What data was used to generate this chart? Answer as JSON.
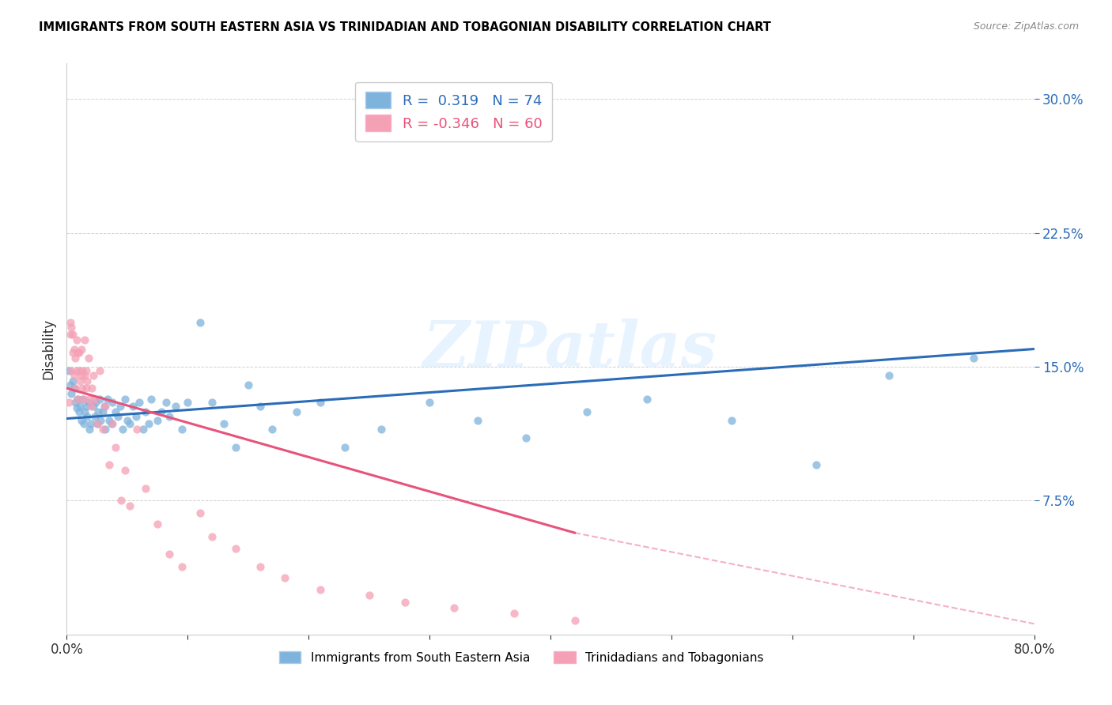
{
  "title": "IMMIGRANTS FROM SOUTH EASTERN ASIA VS TRINIDADIAN AND TOBAGONIAN DISABILITY CORRELATION CHART",
  "source": "Source: ZipAtlas.com",
  "ylabel": "Disability",
  "xlim": [
    0.0,
    0.8
  ],
  "ylim": [
    0.0,
    0.32
  ],
  "yticks": [
    0.075,
    0.15,
    0.225,
    0.3
  ],
  "ytick_labels": [
    "7.5%",
    "15.0%",
    "22.5%",
    "30.0%"
  ],
  "xticks": [
    0.0,
    0.1,
    0.2,
    0.3,
    0.4,
    0.5,
    0.6,
    0.7,
    0.8
  ],
  "xtick_labels": [
    "0.0%",
    "",
    "",
    "",
    "",
    "",
    "",
    "",
    "80.0%"
  ],
  "legend_label_blue": "Immigrants from South Eastern Asia",
  "legend_label_pink": "Trinidadians and Tobagonians",
  "R_blue": 0.319,
  "N_blue": 74,
  "R_pink": -0.346,
  "N_pink": 60,
  "blue_color": "#7EB3DC",
  "pink_color": "#F4A0B5",
  "blue_line_color": "#2B6CB8",
  "pink_line_color": "#E8537A",
  "watermark": "ZIPatlas",
  "blue_line_x0": 0.0,
  "blue_line_y0": 0.121,
  "blue_line_x1": 0.8,
  "blue_line_y1": 0.16,
  "pink_line_x0": 0.0,
  "pink_line_y0": 0.138,
  "pink_line_x1": 0.42,
  "pink_line_y1": 0.057,
  "pink_line_dash_x1": 0.8,
  "pink_line_dash_y1": 0.006,
  "blue_scatter_x": [
    0.002,
    0.003,
    0.004,
    0.005,
    0.006,
    0.007,
    0.008,
    0.009,
    0.01,
    0.011,
    0.012,
    0.013,
    0.014,
    0.015,
    0.016,
    0.017,
    0.018,
    0.019,
    0.02,
    0.022,
    0.023,
    0.024,
    0.025,
    0.026,
    0.027,
    0.028,
    0.03,
    0.031,
    0.032,
    0.034,
    0.035,
    0.037,
    0.038,
    0.04,
    0.042,
    0.044,
    0.046,
    0.048,
    0.05,
    0.052,
    0.055,
    0.057,
    0.06,
    0.063,
    0.065,
    0.068,
    0.07,
    0.075,
    0.078,
    0.082,
    0.085,
    0.09,
    0.095,
    0.1,
    0.11,
    0.12,
    0.13,
    0.14,
    0.15,
    0.16,
    0.17,
    0.19,
    0.21,
    0.23,
    0.26,
    0.3,
    0.34,
    0.38,
    0.43,
    0.48,
    0.55,
    0.62,
    0.68,
    0.75
  ],
  "blue_scatter_y": [
    0.148,
    0.14,
    0.135,
    0.142,
    0.138,
    0.13,
    0.127,
    0.132,
    0.125,
    0.128,
    0.12,
    0.132,
    0.118,
    0.125,
    0.128,
    0.122,
    0.13,
    0.115,
    0.118,
    0.128,
    0.122,
    0.13,
    0.118,
    0.125,
    0.132,
    0.12,
    0.125,
    0.128,
    0.115,
    0.132,
    0.12,
    0.118,
    0.13,
    0.125,
    0.122,
    0.128,
    0.115,
    0.132,
    0.12,
    0.118,
    0.128,
    0.122,
    0.13,
    0.115,
    0.125,
    0.118,
    0.132,
    0.12,
    0.125,
    0.13,
    0.122,
    0.128,
    0.115,
    0.13,
    0.175,
    0.13,
    0.118,
    0.105,
    0.14,
    0.128,
    0.115,
    0.125,
    0.13,
    0.105,
    0.115,
    0.13,
    0.12,
    0.11,
    0.125,
    0.132,
    0.12,
    0.095,
    0.145,
    0.155
  ],
  "pink_scatter_x": [
    0.002,
    0.003,
    0.003,
    0.004,
    0.004,
    0.005,
    0.005,
    0.006,
    0.006,
    0.007,
    0.007,
    0.008,
    0.008,
    0.009,
    0.009,
    0.01,
    0.01,
    0.011,
    0.012,
    0.012,
    0.013,
    0.013,
    0.014,
    0.015,
    0.015,
    0.016,
    0.016,
    0.017,
    0.018,
    0.019,
    0.02,
    0.021,
    0.022,
    0.023,
    0.025,
    0.027,
    0.03,
    0.032,
    0.035,
    0.038,
    0.04,
    0.045,
    0.048,
    0.052,
    0.058,
    0.065,
    0.075,
    0.085,
    0.095,
    0.11,
    0.12,
    0.14,
    0.16,
    0.18,
    0.21,
    0.25,
    0.28,
    0.32,
    0.37,
    0.42
  ],
  "pink_scatter_y": [
    0.13,
    0.175,
    0.168,
    0.172,
    0.148,
    0.168,
    0.158,
    0.16,
    0.145,
    0.155,
    0.138,
    0.165,
    0.148,
    0.158,
    0.132,
    0.148,
    0.158,
    0.142,
    0.145,
    0.16,
    0.138,
    0.148,
    0.132,
    0.145,
    0.165,
    0.148,
    0.138,
    0.142,
    0.155,
    0.132,
    0.128,
    0.138,
    0.145,
    0.132,
    0.118,
    0.148,
    0.115,
    0.128,
    0.095,
    0.118,
    0.105,
    0.075,
    0.092,
    0.072,
    0.115,
    0.082,
    0.062,
    0.045,
    0.038,
    0.068,
    0.055,
    0.048,
    0.038,
    0.032,
    0.025,
    0.022,
    0.018,
    0.015,
    0.012,
    0.008
  ]
}
